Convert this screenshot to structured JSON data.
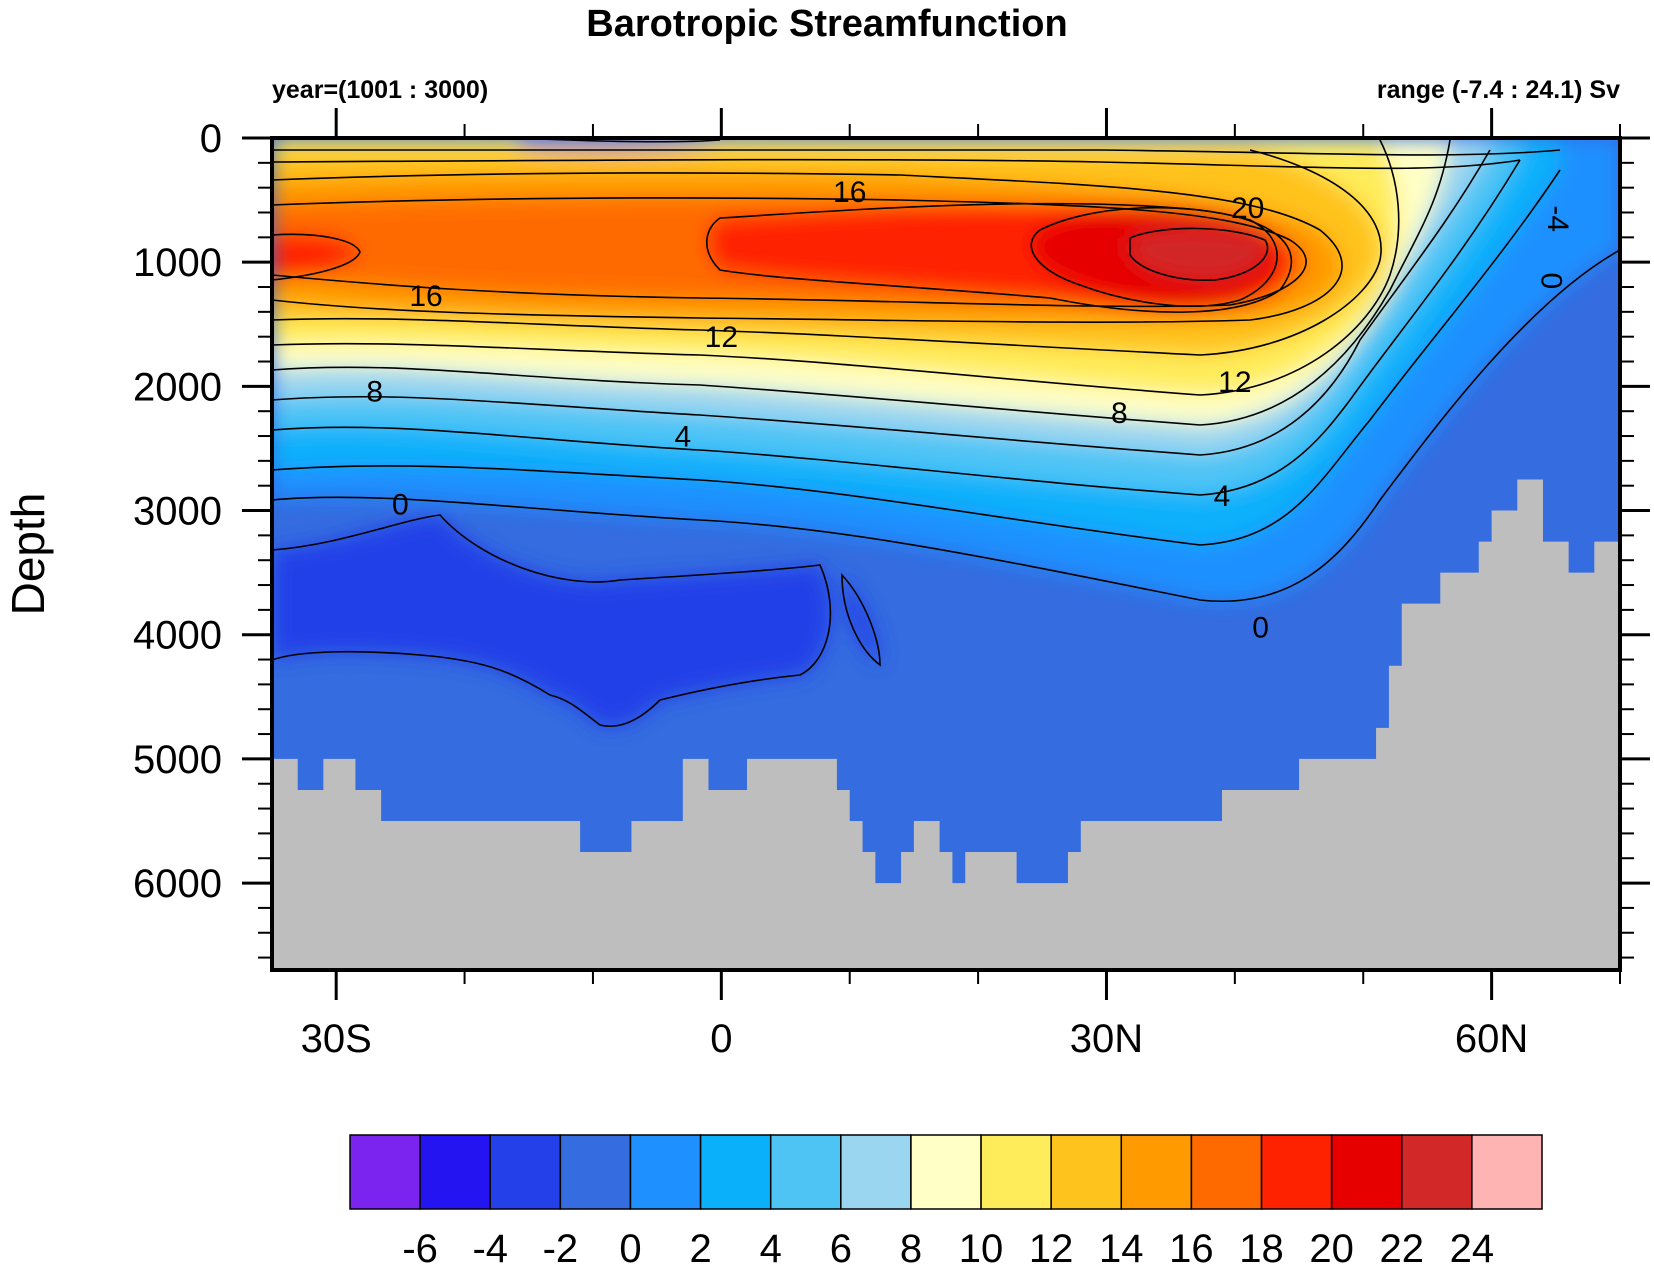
{
  "chart_data": {
    "type": "heatmap",
    "title": "Barotropic Streamfunction",
    "left_subtitle": "year=(1001 : 3000)",
    "right_subtitle": "range (-7.4 : 24.1) Sv",
    "xlabel": "",
    "ylabel": "Depth",
    "x_ticks": [
      {
        "value": -30,
        "label": "30S"
      },
      {
        "value": 0,
        "label": "0"
      },
      {
        "value": 30,
        "label": "30N"
      },
      {
        "value": 60,
        "label": "60N"
      }
    ],
    "xlim": [
      -35,
      70
    ],
    "y_ticks": [
      {
        "value": 0,
        "label": "0"
      },
      {
        "value": 1000,
        "label": "1000"
      },
      {
        "value": 2000,
        "label": "2000"
      },
      {
        "value": 3000,
        "label": "3000"
      },
      {
        "value": 4000,
        "label": "4000"
      },
      {
        "value": 5000,
        "label": "5000"
      },
      {
        "value": 6000,
        "label": "6000"
      }
    ],
    "ylim": [
      0,
      6700
    ],
    "y_reversed": true,
    "colorbar": {
      "levels": [
        -6,
        -4,
        -2,
        0,
        2,
        4,
        6,
        8,
        10,
        12,
        14,
        16,
        18,
        20,
        22,
        24
      ],
      "colors": [
        "#7b24ef",
        "#2414f2",
        "#2440e8",
        "#356ce0",
        "#1e90ff",
        "#0bb0fb",
        "#4ec4f5",
        "#9bd6f0",
        "#ffffc6",
        "#ffec5a",
        "#ffc31e",
        "#ff9a00",
        "#ff6a00",
        "#ff2200",
        "#e60000",
        "#d22828",
        "#ffb4b4"
      ]
    },
    "land_color": "#bebebe",
    "labeled_contours": [
      {
        "label": "16",
        "lat": 10,
        "depth": 450
      },
      {
        "label": "20",
        "lat": 41,
        "depth": 580
      },
      {
        "label": "16",
        "lat": -23,
        "depth": 1290
      },
      {
        "label": "12",
        "lat": 0,
        "depth": 1620
      },
      {
        "label": "12",
        "lat": 40,
        "depth": 1980
      },
      {
        "label": "8",
        "lat": -27,
        "depth": 2060
      },
      {
        "label": "8",
        "lat": 31,
        "depth": 2230
      },
      {
        "label": "4",
        "lat": -3,
        "depth": 2420
      },
      {
        "label": "4",
        "lat": 39,
        "depth": 2900
      },
      {
        "label": "0",
        "lat": -25,
        "depth": 2970
      },
      {
        "label": "0",
        "lat": 42,
        "depth": 3960
      },
      {
        "label": "-4",
        "lat": 65,
        "depth": 650
      },
      {
        "label": "0",
        "lat": 64.5,
        "depth": 1150
      }
    ],
    "bathymetry_depth": [
      {
        "lat": -35,
        "depth": 5000
      },
      {
        "lat": -33,
        "depth": 5250
      },
      {
        "lat": -31,
        "depth": 5000
      },
      {
        "lat": -28.5,
        "depth": 5250
      },
      {
        "lat": -26.5,
        "depth": 5500
      },
      {
        "lat": -11,
        "depth": 5750
      },
      {
        "lat": -7,
        "depth": 5500
      },
      {
        "lat": -3,
        "depth": 5000
      },
      {
        "lat": -1,
        "depth": 5250
      },
      {
        "lat": 2,
        "depth": 5000
      },
      {
        "lat": 9,
        "depth": 5250
      },
      {
        "lat": 10,
        "depth": 5500
      },
      {
        "lat": 11,
        "depth": 5750
      },
      {
        "lat": 12,
        "depth": 6000
      },
      {
        "lat": 14,
        "depth": 5750
      },
      {
        "lat": 15,
        "depth": 5500
      },
      {
        "lat": 17,
        "depth": 5750
      },
      {
        "lat": 18,
        "depth": 6000
      },
      {
        "lat": 19,
        "depth": 5750
      },
      {
        "lat": 23,
        "depth": 6000
      },
      {
        "lat": 27,
        "depth": 5750
      },
      {
        "lat": 28,
        "depth": 5500
      },
      {
        "lat": 39,
        "depth": 5250
      },
      {
        "lat": 45,
        "depth": 5000
      },
      {
        "lat": 51,
        "depth": 4750
      },
      {
        "lat": 52,
        "depth": 4250
      },
      {
        "lat": 53,
        "depth": 3750
      },
      {
        "lat": 56,
        "depth": 3500
      },
      {
        "lat": 59,
        "depth": 3250
      },
      {
        "lat": 60,
        "depth": 3000
      },
      {
        "lat": 62,
        "depth": 2750
      },
      {
        "lat": 64,
        "depth": 3250
      },
      {
        "lat": 66,
        "depth": 3500
      },
      {
        "lat": 68,
        "depth": 3250
      },
      {
        "lat": 70,
        "depth": 3250
      }
    ]
  }
}
